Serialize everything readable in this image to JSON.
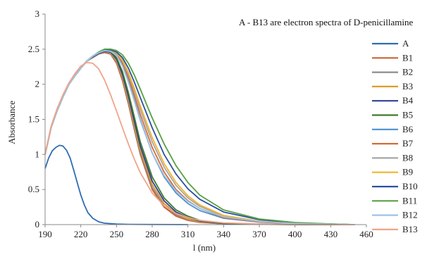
{
  "chart_data": {
    "type": "line",
    "title": "A - B13 are electron spectra of D-penicillamine",
    "xlabel": "l (nm)",
    "ylabel": "Absorbance",
    "xlim": [
      190,
      460
    ],
    "ylim": [
      0,
      3
    ],
    "x_ticks": [
      190,
      220,
      250,
      280,
      310,
      340,
      370,
      400,
      430,
      460
    ],
    "y_ticks": [
      0,
      0.5,
      1,
      1.5,
      2,
      2.5,
      3
    ],
    "x_tick_labels": [
      "190",
      "220",
      "250",
      "280",
      "310",
      "340",
      "370",
      "400",
      "430",
      "460"
    ],
    "y_tick_labels": [
      "0",
      "0.5",
      "1",
      "1.5",
      "2",
      "2.5",
      "3"
    ],
    "grid": false,
    "legend_position": "right",
    "series": [
      {
        "name": "A",
        "color": "#2e6db4",
        "x": [
          190,
          193,
          196,
          199,
          202,
          205,
          208,
          211,
          214,
          217,
          220,
          223,
          226,
          230,
          235,
          240,
          250,
          260,
          280,
          310
        ],
        "y": [
          0.8,
          0.95,
          1.05,
          1.1,
          1.13,
          1.12,
          1.06,
          0.95,
          0.78,
          0.6,
          0.42,
          0.28,
          0.17,
          0.09,
          0.04,
          0.02,
          0.008,
          0.004,
          0.002,
          0
        ]
      },
      {
        "name": "B1",
        "color": "#d0612c",
        "x": [
          190,
          195,
          200,
          205,
          210,
          215,
          220,
          225,
          230,
          235,
          240,
          245,
          250,
          255,
          260,
          265,
          270,
          280,
          290,
          300,
          310,
          320,
          340,
          370,
          400,
          430,
          450
        ],
        "y": [
          1.0,
          1.38,
          1.62,
          1.82,
          2.0,
          2.12,
          2.23,
          2.33,
          2.38,
          2.43,
          2.45,
          2.43,
          2.3,
          2.05,
          1.72,
          1.35,
          1.0,
          0.5,
          0.25,
          0.12,
          0.06,
          0.03,
          0.01,
          0.005,
          0.002,
          0,
          0
        ]
      },
      {
        "name": "B2",
        "color": "#8c8c8c",
        "x": [
          190,
          195,
          200,
          205,
          210,
          215,
          220,
          225,
          230,
          235,
          240,
          245,
          250,
          255,
          260,
          265,
          270,
          280,
          290,
          300,
          310,
          320,
          340,
          370,
          400,
          430,
          450
        ],
        "y": [
          1.0,
          1.38,
          1.62,
          1.82,
          2.0,
          2.12,
          2.23,
          2.33,
          2.38,
          2.43,
          2.46,
          2.44,
          2.32,
          2.08,
          1.75,
          1.38,
          1.03,
          0.53,
          0.27,
          0.14,
          0.07,
          0.035,
          0.01,
          0.005,
          0.002,
          0,
          0
        ]
      },
      {
        "name": "B3",
        "color": "#e09a2a",
        "x": [
          190,
          195,
          200,
          205,
          210,
          215,
          220,
          225,
          230,
          235,
          240,
          245,
          250,
          255,
          260,
          265,
          270,
          280,
          290,
          300,
          310,
          320,
          340,
          370,
          400,
          430,
          450
        ],
        "y": [
          1.0,
          1.38,
          1.62,
          1.82,
          2.0,
          2.12,
          2.23,
          2.33,
          2.39,
          2.44,
          2.47,
          2.45,
          2.34,
          2.11,
          1.79,
          1.42,
          1.07,
          0.57,
          0.3,
          0.16,
          0.08,
          0.04,
          0.012,
          0.005,
          0.002,
          0,
          0
        ]
      },
      {
        "name": "B4",
        "color": "#2b3f9a",
        "x": [
          190,
          195,
          200,
          205,
          210,
          215,
          220,
          225,
          230,
          235,
          240,
          245,
          250,
          255,
          260,
          265,
          270,
          280,
          290,
          300,
          310,
          320,
          340,
          370,
          400,
          430,
          450
        ],
        "y": [
          1.0,
          1.38,
          1.62,
          1.82,
          2.0,
          2.12,
          2.23,
          2.33,
          2.39,
          2.44,
          2.47,
          2.46,
          2.36,
          2.14,
          1.83,
          1.47,
          1.12,
          0.62,
          0.34,
          0.18,
          0.1,
          0.05,
          0.015,
          0.006,
          0.002,
          0,
          0
        ]
      },
      {
        "name": "B5",
        "color": "#3f7a2c",
        "x": [
          190,
          195,
          200,
          205,
          210,
          215,
          220,
          225,
          230,
          235,
          240,
          245,
          250,
          255,
          260,
          265,
          270,
          280,
          290,
          300,
          310,
          320,
          340,
          370,
          400,
          430,
          450
        ],
        "y": [
          1.0,
          1.38,
          1.62,
          1.82,
          2.0,
          2.12,
          2.23,
          2.33,
          2.4,
          2.45,
          2.48,
          2.47,
          2.38,
          2.18,
          1.88,
          1.53,
          1.18,
          0.68,
          0.38,
          0.21,
          0.12,
          0.06,
          0.02,
          0.007,
          0.003,
          0,
          0
        ]
      },
      {
        "name": "B6",
        "color": "#4a92cf",
        "x": [
          190,
          195,
          200,
          205,
          210,
          215,
          220,
          225,
          230,
          235,
          240,
          245,
          250,
          255,
          260,
          265,
          270,
          280,
          290,
          300,
          310,
          320,
          340,
          370,
          400,
          430,
          450
        ],
        "y": [
          1.0,
          1.38,
          1.62,
          1.82,
          2.0,
          2.12,
          2.23,
          2.33,
          2.4,
          2.45,
          2.48,
          2.47,
          2.42,
          2.28,
          2.05,
          1.78,
          1.5,
          1.02,
          0.68,
          0.45,
          0.3,
          0.2,
          0.09,
          0.035,
          0.012,
          0.004,
          0
        ]
      },
      {
        "name": "B7",
        "color": "#d86a35",
        "x": [
          190,
          195,
          200,
          205,
          210,
          215,
          220,
          225,
          230,
          235,
          240,
          245,
          250,
          255,
          260,
          265,
          270,
          280,
          290,
          300,
          310,
          320,
          340,
          370,
          400,
          430,
          450
        ],
        "y": [
          1.0,
          1.38,
          1.62,
          1.82,
          2.0,
          2.12,
          2.23,
          2.33,
          2.4,
          2.45,
          2.48,
          2.48,
          2.43,
          2.31,
          2.1,
          1.84,
          1.57,
          1.1,
          0.75,
          0.5,
          0.34,
          0.23,
          0.1,
          0.04,
          0.014,
          0.005,
          0
        ]
      },
      {
        "name": "B8",
        "color": "#a6a6a6",
        "x": [
          190,
          195,
          200,
          205,
          210,
          215,
          220,
          225,
          230,
          235,
          240,
          245,
          250,
          255,
          260,
          265,
          270,
          280,
          290,
          300,
          310,
          320,
          340,
          370,
          400,
          430,
          450
        ],
        "y": [
          1.0,
          1.38,
          1.62,
          1.82,
          2.0,
          2.12,
          2.23,
          2.33,
          2.4,
          2.45,
          2.48,
          2.48,
          2.44,
          2.33,
          2.14,
          1.9,
          1.64,
          1.18,
          0.82,
          0.56,
          0.38,
          0.26,
          0.12,
          0.045,
          0.016,
          0.005,
          0
        ]
      },
      {
        "name": "B9",
        "color": "#f2b52c",
        "x": [
          190,
          195,
          200,
          205,
          210,
          215,
          220,
          225,
          230,
          235,
          240,
          245,
          250,
          255,
          260,
          265,
          270,
          280,
          290,
          300,
          310,
          320,
          340,
          370,
          400,
          430,
          450
        ],
        "y": [
          1.0,
          1.38,
          1.62,
          1.82,
          2.0,
          2.12,
          2.23,
          2.33,
          2.4,
          2.45,
          2.49,
          2.49,
          2.45,
          2.35,
          2.17,
          1.94,
          1.69,
          1.24,
          0.87,
          0.6,
          0.41,
          0.28,
          0.13,
          0.05,
          0.018,
          0.006,
          0
        ]
      },
      {
        "name": "B10",
        "color": "#2c4fa3",
        "x": [
          190,
          195,
          200,
          205,
          210,
          215,
          220,
          225,
          230,
          235,
          240,
          245,
          250,
          255,
          260,
          265,
          270,
          280,
          290,
          300,
          310,
          320,
          340,
          370,
          400,
          430,
          450
        ],
        "y": [
          1.0,
          1.38,
          1.62,
          1.82,
          2.0,
          2.12,
          2.23,
          2.33,
          2.4,
          2.45,
          2.49,
          2.49,
          2.46,
          2.38,
          2.23,
          2.03,
          1.81,
          1.38,
          1.0,
          0.72,
          0.51,
          0.36,
          0.18,
          0.07,
          0.025,
          0.008,
          0
        ]
      },
      {
        "name": "B11",
        "color": "#57a140",
        "x": [
          190,
          195,
          200,
          205,
          210,
          215,
          220,
          225,
          230,
          235,
          240,
          245,
          250,
          255,
          260,
          265,
          270,
          280,
          290,
          300,
          310,
          320,
          340,
          370,
          400,
          430,
          450
        ],
        "y": [
          1.0,
          1.38,
          1.62,
          1.82,
          2.0,
          2.12,
          2.23,
          2.33,
          2.4,
          2.46,
          2.5,
          2.5,
          2.48,
          2.42,
          2.3,
          2.13,
          1.93,
          1.52,
          1.15,
          0.84,
          0.6,
          0.42,
          0.21,
          0.08,
          0.03,
          0.01,
          0
        ]
      },
      {
        "name": "B12",
        "color": "#9fc2e6",
        "x": [
          190,
          195,
          200,
          205,
          210,
          215,
          220,
          225,
          230,
          235,
          240,
          245,
          250,
          255,
          260,
          265,
          270,
          280,
          290,
          300,
          310,
          320,
          340,
          370,
          400,
          430,
          450
        ],
        "y": [
          1.0,
          1.38,
          1.62,
          1.82,
          2.0,
          2.12,
          2.23,
          2.33,
          2.4,
          2.45,
          2.48,
          2.47,
          2.41,
          2.26,
          2.03,
          1.76,
          1.48,
          1.02,
          0.7,
          0.48,
          0.33,
          0.23,
          0.11,
          0.045,
          0.016,
          0.005,
          0
        ]
      },
      {
        "name": "B13",
        "color": "#f2a38a",
        "x": [
          190,
          195,
          200,
          205,
          210,
          215,
          220,
          225,
          230,
          235,
          240,
          245,
          250,
          255,
          260,
          265,
          270,
          280,
          290,
          300,
          310,
          320,
          340,
          370,
          400,
          430,
          450
        ],
        "y": [
          1.0,
          1.4,
          1.65,
          1.85,
          2.02,
          2.15,
          2.26,
          2.31,
          2.3,
          2.22,
          2.06,
          1.85,
          1.62,
          1.38,
          1.15,
          0.93,
          0.74,
          0.45,
          0.27,
          0.16,
          0.1,
          0.06,
          0.025,
          0.01,
          0.004,
          0.001,
          0
        ]
      }
    ]
  }
}
